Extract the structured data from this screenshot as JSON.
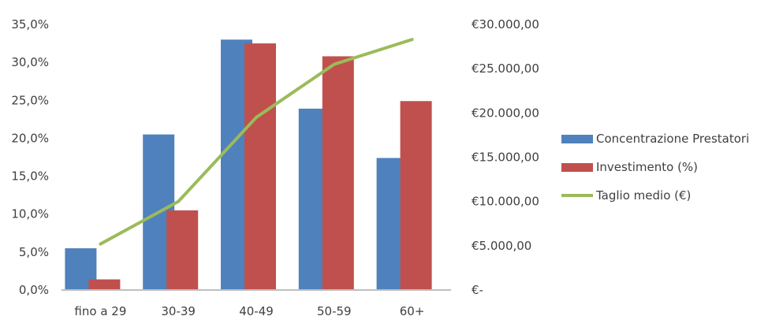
{
  "chart_data": {
    "type": "bar",
    "categories": [
      "fino a 29",
      "30-39",
      "40-49",
      "50-59",
      "60+"
    ],
    "series": [
      {
        "name": "Concentrazione Prestatori",
        "kind": "bar",
        "axis": "left",
        "color": "#4f81bd",
        "values": [
          5.5,
          20.5,
          33.0,
          23.9,
          17.4
        ]
      },
      {
        "name": "Investimento (%)",
        "kind": "bar",
        "axis": "left",
        "color": "#c0504d",
        "values": [
          1.4,
          10.5,
          32.5,
          30.8,
          24.9
        ]
      },
      {
        "name": "Taglio medio (€)",
        "kind": "line",
        "axis": "right",
        "color": "#9bbb59",
        "values": [
          5200,
          10000,
          19500,
          25500,
          28300
        ]
      }
    ],
    "y_left": {
      "min": 0,
      "max": 35,
      "step": 5,
      "tick_labels": [
        "0,0%",
        "5,0%",
        "10,0%",
        "15,0%",
        "20,0%",
        "25,0%",
        "30,0%",
        "35,0%"
      ]
    },
    "y_right": {
      "min": 0,
      "max": 30000,
      "step": 5000,
      "tick_labels": [
        "€-",
        "€5.000,00",
        "€10.000,00",
        "€15.000,00",
        "€20.000,00",
        "€25.000,00",
        "€30.000,00"
      ]
    },
    "grid": false,
    "legend_position": "right"
  }
}
